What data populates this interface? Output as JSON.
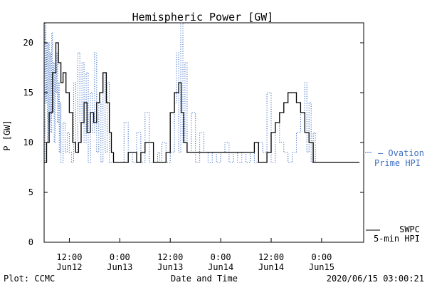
{
  "footer": {
    "plot_credit": "Plot: CCMC",
    "timestamp": "2020/06/15 03:00:21"
  },
  "chart_data": {
    "type": "line",
    "title": "Hemispheric Power [GW]",
    "xlabel": "Date and Time",
    "ylabel": "P [GW]",
    "ylim": [
      0,
      22
    ],
    "xlim_hours": [
      0,
      76
    ],
    "y_ticks": [
      "0",
      "5",
      "10",
      "15",
      "20"
    ],
    "x_ticks": [
      {
        "time": "12:00",
        "date": "Jun12",
        "hour": 6
      },
      {
        "time": "0:00",
        "date": "Jun13",
        "hour": 18
      },
      {
        "time": "12:00",
        "date": "Jun13",
        "hour": 30
      },
      {
        "time": "0:00",
        "date": "Jun14",
        "hour": 42
      },
      {
        "time": "12:00",
        "date": "Jun14",
        "hour": 54
      },
      {
        "time": "0:00",
        "date": "Jun15",
        "hour": 66
      }
    ],
    "legend": {
      "ovation_line1": "— Ovation",
      "ovation_line2": "Prime HPI",
      "swpc_line1": "SWPC",
      "swpc_line2": "5-min HPI",
      "placement": "right"
    },
    "colors": {
      "ovation": "#3f6fc2",
      "swpc": "#000000"
    },
    "series": [
      {
        "name": "Ovation Prime HPI",
        "style": "dotted",
        "x": [
          0.0,
          0.2,
          0.4,
          0.6,
          0.8,
          1.0,
          1.2,
          1.4,
          1.6,
          1.8,
          2.0,
          2.2,
          2.4,
          2.6,
          2.8,
          3.0,
          3.2,
          3.4,
          3.6,
          3.8,
          4.0,
          4.5,
          5.0,
          5.5,
          6.0,
          6.5,
          7.0,
          7.5,
          8.0,
          8.5,
          9.0,
          9.5,
          10.0,
          10.5,
          11.0,
          11.5,
          12.0,
          12.5,
          13.0,
          13.5,
          14.0,
          14.5,
          15.0,
          15.5,
          16.0,
          17.0,
          18.0,
          19.0,
          20.0,
          21.0,
          22.0,
          23.0,
          24.0,
          25.0,
          26.0,
          27.0,
          27.5,
          28.0,
          29.0,
          30.0,
          31.0,
          31.5,
          32.0,
          32.5,
          33.0,
          33.5,
          34.0,
          35.0,
          36.0,
          37.0,
          38.0,
          39.0,
          40.0,
          41.0,
          42.0,
          43.0,
          44.0,
          45.0,
          46.0,
          47.0,
          48.0,
          49.0,
          50.0,
          51.0,
          52.0,
          53.0,
          54.0,
          55.0,
          56.0,
          57.0,
          58.0,
          59.0,
          60.0,
          61.0,
          62.0,
          62.5,
          63.0,
          63.5,
          64.0,
          64.5,
          65.0,
          66.0,
          67.0,
          68.0,
          69.0,
          70.0,
          71.0,
          72.0,
          73.0,
          74.0,
          75.0
        ],
        "y": [
          8,
          22,
          14,
          20,
          10,
          20,
          12,
          19,
          11,
          21,
          13,
          18,
          10,
          17,
          15,
          19,
          12,
          16,
          9,
          14,
          8,
          12,
          9,
          11,
          9,
          8,
          16,
          9,
          19,
          12,
          18,
          10,
          17,
          8,
          15,
          11,
          19,
          9,
          14,
          8,
          17,
          9,
          16,
          8,
          8,
          8,
          8,
          12,
          9,
          8,
          11,
          8,
          13,
          8,
          8,
          9,
          8,
          10,
          8,
          9,
          14,
          19,
          9,
          22,
          10,
          18,
          9,
          13,
          8,
          11,
          9,
          8,
          9,
          8,
          9,
          10,
          8,
          9,
          8,
          9,
          8,
          9,
          8,
          10,
          9,
          15,
          8,
          12,
          10,
          9,
          8,
          9,
          11,
          13,
          16,
          9,
          14,
          8,
          11,
          8,
          8,
          8,
          8,
          8,
          8,
          8,
          8,
          8,
          8,
          8,
          8
        ]
      },
      {
        "name": "SWPC 5-min HPI",
        "style": "solid",
        "x": [
          0.0,
          0.6,
          1.2,
          2.0,
          2.8,
          3.4,
          4.0,
          4.5,
          5.2,
          6.0,
          6.8,
          7.5,
          8.2,
          8.8,
          9.5,
          10.2,
          11.0,
          11.8,
          12.5,
          13.2,
          14.0,
          14.8,
          15.5,
          16.0,
          16.5,
          17.0,
          18.0,
          19.0,
          20.0,
          21.0,
          22.0,
          23.0,
          24.0,
          25.0,
          26.0,
          27.0,
          28.0,
          29.0,
          30.0,
          31.0,
          32.0,
          32.6,
          33.2,
          34.0,
          35.0,
          36.0,
          37.0,
          38.0,
          40.0,
          42.0,
          44.0,
          46.0,
          48.0,
          50.0,
          51.0,
          52.0,
          53.0,
          54.0,
          55.0,
          56.0,
          57.0,
          58.0,
          59.0,
          60.0,
          61.0,
          62.0,
          63.0,
          64.0,
          65.0,
          66.0,
          67.0,
          68.0,
          69.0,
          70.0,
          71.0,
          72.0,
          73.0,
          74.0,
          75.0
        ],
        "y": [
          8,
          10,
          13,
          17,
          20,
          18,
          16,
          17,
          15,
          13,
          10,
          9,
          10,
          12,
          14,
          11,
          13,
          12,
          14,
          15,
          17,
          14,
          11,
          9,
          8,
          8,
          8,
          8,
          9,
          9,
          8,
          9,
          10,
          10,
          8,
          8,
          8,
          9,
          13,
          15,
          16,
          13,
          10,
          9,
          9,
          9,
          9,
          9,
          9,
          9,
          9,
          9,
          9,
          10,
          8,
          8,
          9,
          11,
          12,
          13,
          14,
          15,
          15,
          14,
          13,
          11,
          10,
          8,
          8,
          8,
          8,
          8,
          8,
          8,
          8,
          8,
          8,
          8,
          8
        ]
      }
    ]
  }
}
